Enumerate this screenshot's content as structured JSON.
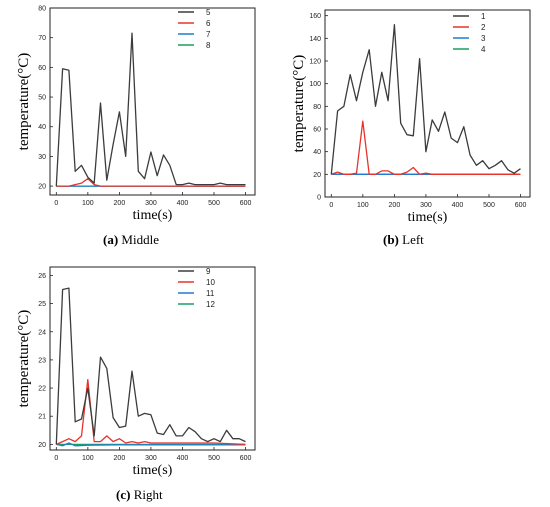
{
  "chart_data": [
    {
      "type": "line",
      "panel_label": "(a)",
      "panel_name": "Middle",
      "xlabel": "time(s)",
      "ylabel": "temperature(°C)",
      "xlim": [
        -20,
        630
      ],
      "ylim": [
        17,
        80
      ],
      "xticks": [
        0,
        100,
        200,
        300,
        400,
        500,
        600
      ],
      "yticks": [
        20,
        30,
        40,
        50,
        60,
        70,
        80
      ],
      "legend": "top-right",
      "grid": false,
      "series": [
        {
          "name": "5",
          "color": "#3c3c3c",
          "x": [
            0,
            20,
            40,
            60,
            80,
            100,
            120,
            140,
            160,
            180,
            200,
            220,
            240,
            260,
            280,
            300,
            320,
            340,
            360,
            380,
            400,
            420,
            440,
            460,
            480,
            500,
            520,
            540,
            560,
            580,
            600
          ],
          "y": [
            20,
            59.5,
            59,
            25,
            27,
            23,
            21,
            48,
            22,
            34,
            45,
            30,
            71.5,
            25,
            22.5,
            31.5,
            23.5,
            30.5,
            27,
            20.5,
            20.5,
            21,
            20.5,
            20.5,
            20.5,
            20.5,
            21,
            20.5,
            20.5,
            20.5,
            20.5
          ]
        },
        {
          "name": "6",
          "color": "#e8332a",
          "x": [
            0,
            20,
            40,
            60,
            80,
            100,
            120,
            140,
            160,
            180,
            200,
            300,
            400,
            500,
            600
          ],
          "y": [
            20,
            20,
            20,
            20.5,
            21,
            22.5,
            20.5,
            20,
            20,
            20,
            20,
            20,
            20,
            20,
            20
          ]
        },
        {
          "name": "7",
          "color": "#1f7ad1",
          "x": [
            0,
            100,
            200,
            300,
            400,
            500,
            600
          ],
          "y": [
            20,
            20,
            20,
            20,
            20,
            20,
            20
          ]
        },
        {
          "name": "8",
          "color": "#18a060",
          "x": [
            0,
            100,
            200,
            300,
            400,
            500,
            600
          ],
          "y": [
            20,
            20,
            20,
            20,
            20,
            20,
            20
          ]
        }
      ]
    },
    {
      "type": "line",
      "panel_label": "(b)",
      "panel_name": "Left",
      "xlabel": "time(s)",
      "ylabel": "temperature(°C)",
      "xlim": [
        -20,
        630
      ],
      "ylim": [
        0,
        165
      ],
      "xticks": [
        0,
        100,
        200,
        300,
        400,
        500,
        600
      ],
      "yticks": [
        0,
        20,
        40,
        60,
        80,
        100,
        120,
        140,
        160
      ],
      "legend": "top-right",
      "grid": false,
      "series": [
        {
          "name": "1",
          "color": "#3c3c3c",
          "x": [
            0,
            20,
            40,
            60,
            80,
            100,
            120,
            140,
            160,
            180,
            200,
            220,
            240,
            260,
            280,
            300,
            320,
            340,
            360,
            380,
            400,
            420,
            440,
            460,
            480,
            500,
            520,
            540,
            560,
            580,
            600
          ],
          "y": [
            20,
            76,
            80,
            108,
            85,
            110,
            130,
            80,
            110,
            85,
            152,
            65,
            55,
            54,
            122,
            40,
            68,
            58,
            75,
            52,
            48,
            62,
            37,
            28,
            32,
            25,
            28,
            32,
            24,
            21,
            25
          ]
        },
        {
          "name": "2",
          "color": "#e8332a",
          "x": [
            0,
            20,
            40,
            60,
            80,
            100,
            120,
            140,
            160,
            180,
            200,
            220,
            240,
            260,
            280,
            300,
            320,
            600
          ],
          "y": [
            20,
            22,
            20,
            20,
            21,
            67,
            20,
            20,
            23,
            23,
            20,
            20,
            22,
            26,
            20,
            21,
            20,
            20
          ]
        },
        {
          "name": "3",
          "color": "#1f7ad1",
          "x": [
            0,
            100,
            200,
            300,
            400,
            500,
            600
          ],
          "y": [
            20,
            20,
            20,
            20,
            20,
            20,
            20
          ]
        },
        {
          "name": "4",
          "color": "#18a060",
          "x": [
            0,
            100,
            200,
            300,
            400,
            500,
            600
          ],
          "y": [
            20,
            20,
            20,
            20,
            20,
            20,
            20
          ]
        }
      ]
    },
    {
      "type": "line",
      "panel_label": "(c)",
      "panel_name": "Right",
      "xlabel": "time(s)",
      "ylabel": "temperature(°C)",
      "xlim": [
        -20,
        630
      ],
      "ylim": [
        19.8,
        26.3
      ],
      "xticks": [
        0,
        100,
        200,
        300,
        400,
        500,
        600
      ],
      "yticks": [
        20,
        21,
        22,
        23,
        24,
        25,
        26
      ],
      "legend": "top-right",
      "grid": false,
      "series": [
        {
          "name": "9",
          "color": "#3c3c3c",
          "x": [
            0,
            20,
            40,
            60,
            80,
            100,
            120,
            140,
            160,
            180,
            200,
            220,
            240,
            260,
            280,
            300,
            320,
            340,
            360,
            380,
            400,
            420,
            440,
            460,
            480,
            500,
            520,
            540,
            560,
            580,
            600
          ],
          "y": [
            20,
            25.5,
            25.55,
            20.8,
            20.9,
            22,
            20.3,
            23.1,
            22.7,
            20.95,
            20.6,
            20.65,
            22.6,
            21,
            21.1,
            21.05,
            20.4,
            20.35,
            20.7,
            20.3,
            20.3,
            20.6,
            20.45,
            20.2,
            20.1,
            20.2,
            20.1,
            20.5,
            20.2,
            20.2,
            20.1
          ]
        },
        {
          "name": "10",
          "color": "#e8332a",
          "x": [
            0,
            20,
            40,
            60,
            80,
            100,
            120,
            140,
            160,
            180,
            200,
            220,
            240,
            260,
            280,
            300,
            400,
            500,
            600
          ],
          "y": [
            20,
            20.1,
            20.2,
            20.1,
            20.3,
            22.3,
            20.1,
            20.1,
            20.3,
            20.1,
            20.2,
            20.05,
            20.1,
            20.05,
            20.1,
            20.05,
            20.05,
            20.05,
            20
          ]
        },
        {
          "name": "11",
          "color": "#1f7ad1",
          "x": [
            0,
            20,
            40,
            60,
            100,
            200,
            300,
            400,
            500,
            600
          ],
          "y": [
            20,
            19.95,
            20.05,
            19.95,
            19.97,
            19.98,
            19.98,
            19.98,
            19.98,
            19.98
          ]
        },
        {
          "name": "12",
          "color": "#18a060",
          "x": [
            0,
            100,
            200,
            300,
            400,
            500,
            600
          ],
          "y": [
            20,
            20,
            20,
            20,
            20,
            20,
            20
          ]
        }
      ]
    }
  ]
}
